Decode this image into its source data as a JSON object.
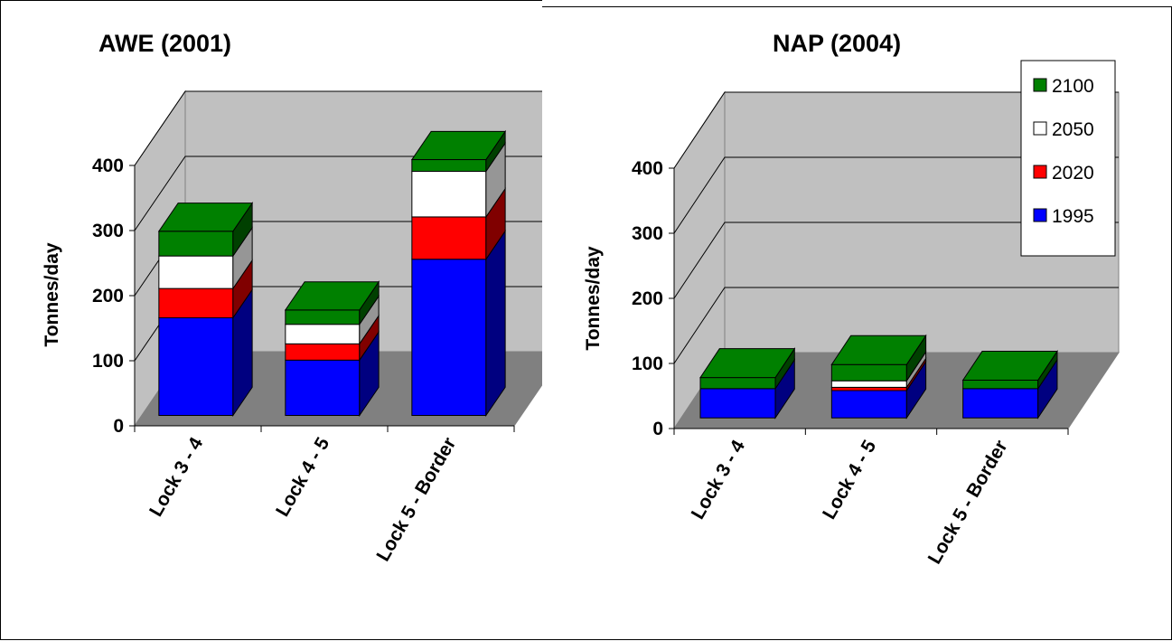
{
  "chart_data": [
    {
      "type": "bar",
      "stacked": true,
      "three_d": true,
      "title": "AWE (2001)",
      "ylabel": "Tonnes/day",
      "xlabel": "",
      "ylim": [
        0,
        400
      ],
      "yticks": [
        "0",
        "100",
        "200",
        "300",
        "400"
      ],
      "categories": [
        "Lock 3 - 4",
        "Lock 4 - 5",
        "Lock 5 - Border"
      ],
      "series": [
        {
          "name": "1995",
          "color": "#0000ff",
          "values": [
            150,
            85,
            240
          ]
        },
        {
          "name": "2020",
          "color": "#ff0000",
          "values": [
            45,
            25,
            65
          ]
        },
        {
          "name": "2050",
          "color": "#ffffff",
          "values": [
            50,
            30,
            70
          ]
        },
        {
          "name": "2100",
          "color": "#008000",
          "values": [
            38,
            22,
            18
          ]
        }
      ],
      "grid": true,
      "legend": "none"
    },
    {
      "type": "bar",
      "stacked": true,
      "three_d": true,
      "title": "NAP (2004)",
      "ylabel": "Tonnes/day",
      "xlabel": "",
      "ylim": [
        0,
        400
      ],
      "yticks": [
        "0",
        "100",
        "200",
        "300",
        "400"
      ],
      "categories": [
        "Lock 3 - 4",
        "Lock 4 - 5",
        "Lock 5 - Border"
      ],
      "series": [
        {
          "name": "1995",
          "color": "#0000ff",
          "values": [
            45,
            42,
            45
          ]
        },
        {
          "name": "2020",
          "color": "#ff0000",
          "values": [
            0,
            5,
            0
          ]
        },
        {
          "name": "2050",
          "color": "#ffffff",
          "values": [
            0,
            10,
            0
          ]
        },
        {
          "name": "2100",
          "color": "#008000",
          "values": [
            17,
            25,
            13
          ]
        }
      ],
      "grid": true,
      "legend": "top-right",
      "legend_order": [
        "2100",
        "2050",
        "2020",
        "1995"
      ]
    }
  ]
}
